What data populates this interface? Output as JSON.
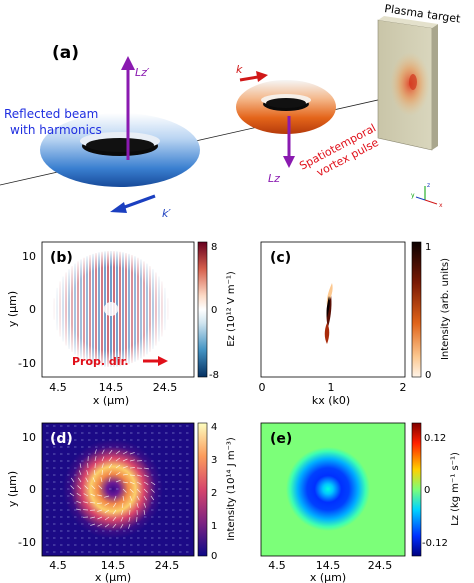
{
  "panel_a": {
    "label": "(a)",
    "reflected_line1": "Reflected beam",
    "reflected_line2": "with harmonics",
    "lz_prime": "Lz′",
    "k_prime": "k′",
    "k": "k",
    "lz": "Lz",
    "stv_line1": "Spatiotemporal",
    "stv_line2": "vortex pulse",
    "plasma_target": "Plasma target",
    "axes_x": "x",
    "axes_y": "y",
    "axes_z": "z"
  },
  "chart_data": [
    {
      "panel": "(b)",
      "type": "heatmap",
      "description_field": "Ez",
      "xlabel": "x (μm)",
      "ylabel": "y (μm)",
      "xticks": [
        "4.5",
        "14.5",
        "24.5"
      ],
      "yticks": [
        "10",
        "0",
        "-10"
      ],
      "xlim": [
        4.5,
        24.5
      ],
      "ylim": [
        -12,
        12
      ],
      "colorbar_label": "Ez (10¹² V m⁻¹)",
      "colorbar_ticks": [
        "8",
        "0",
        "-8"
      ],
      "colorbar_range": [
        -8,
        8
      ],
      "annotation": "Prop. dir."
    },
    {
      "panel": "(c)",
      "type": "heatmap",
      "xlabel": "kx (k0)",
      "xticks": [
        "0",
        "1",
        "2"
      ],
      "xlim": [
        0,
        2
      ],
      "colorbar_label": "Intensity (arb. units)",
      "colorbar_ticks": [
        "1",
        "0"
      ],
      "colorbar_range": [
        0,
        1
      ]
    },
    {
      "panel": "(d)",
      "type": "heatmap",
      "xlabel": "x (μm)",
      "ylabel": "y (μm)",
      "xticks": [
        "4.5",
        "14.5",
        "24.5"
      ],
      "yticks": [
        "10",
        "0",
        "-10"
      ],
      "xlim": [
        4.5,
        24.5
      ],
      "ylim": [
        -12,
        12
      ],
      "colorbar_label": "Intensity (10¹⁴ J m⁻³)",
      "colorbar_ticks": [
        "4",
        "3",
        "2",
        "1",
        "0"
      ],
      "colorbar_range": [
        0,
        4
      ]
    },
    {
      "panel": "(e)",
      "type": "heatmap",
      "xlabel": "x (μm)",
      "xticks": [
        "4.5",
        "14.5",
        "24.5"
      ],
      "xlim": [
        4.5,
        24.5
      ],
      "colorbar_label": "Lz (kg m⁻¹ s⁻¹)",
      "colorbar_ticks": [
        "0.12",
        "0",
        "-0.12"
      ],
      "colorbar_range": [
        -0.12,
        0.12
      ]
    }
  ],
  "colors": {
    "reflected_text": "#1f2ee0",
    "stv_text": "#e0101a",
    "arrow_purple": "#8a1ab0",
    "arrow_blue": "#1b3fc0",
    "arrow_red": "#d01818"
  }
}
